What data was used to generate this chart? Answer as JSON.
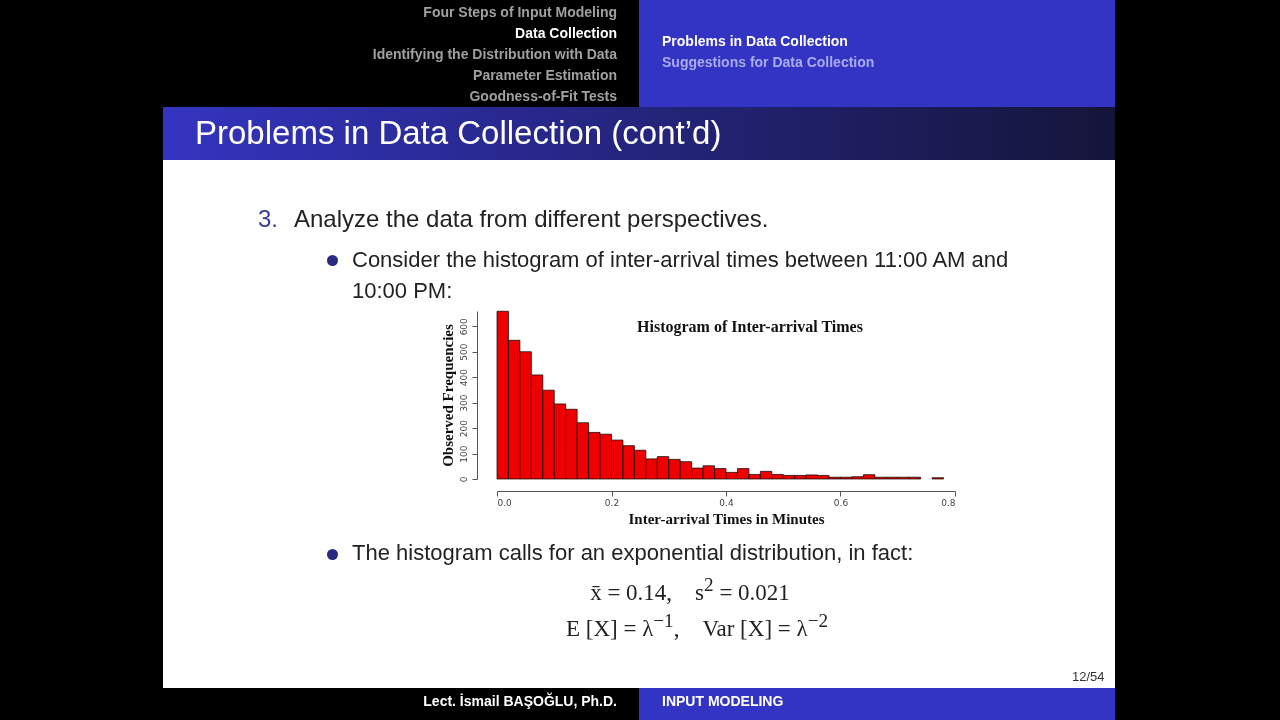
{
  "chart_data": {
    "type": "histogram",
    "title": "Histogram of Inter-arrival Times",
    "xlabel": "Inter-arrival Times in Minutes",
    "ylabel": "Observed Frequencies",
    "bins": [
      0,
      0.02,
      0.04,
      0.06,
      0.08,
      0.1,
      0.12,
      0.14,
      0.16,
      0.18,
      0.2,
      0.22,
      0.24,
      0.26,
      0.28,
      0.3,
      0.32,
      0.34,
      0.36,
      0.38,
      0.4,
      0.42,
      0.44,
      0.46,
      0.48,
      0.5,
      0.52,
      0.54,
      0.56,
      0.58,
      0.6,
      0.62,
      0.64,
      0.66,
      0.68,
      0.7,
      0.72,
      0.74,
      0.76,
      0.78
    ],
    "values": [
      659,
      545,
      500,
      409,
      349,
      295,
      274,
      221,
      183,
      176,
      153,
      131,
      113,
      79,
      88,
      77,
      68,
      43,
      52,
      41,
      26,
      41,
      18,
      30,
      18,
      14,
      14,
      16,
      14,
      7,
      7,
      9,
      17,
      7,
      7,
      7,
      7,
      0,
      5
    ],
    "color": "#ee0000",
    "xlim": [
      0,
      0.8
    ],
    "ylim": [
      0,
      660
    ],
    "xticks": [
      {
        "value": 0,
        "label": "0.0"
      },
      0.2,
      0.4,
      0.6,
      0.8
    ],
    "yticks": [
      0,
      100,
      200,
      300,
      400,
      500,
      600
    ],
    "annotations": [
      "Four Steps of Input Modeling",
      "Data Collection",
      "Identifying the Distribution with Data",
      "Parameter Estimation",
      "Goodness-of-Fit Tests",
      "Problems in Data Collection",
      "Suggestions for Data Collection",
      "Problems in Data Collection (cont’d)",
      "3.",
      "Analyze the data from different perspectives.",
      "Consider the histogram of inter-arrival times between 11:00 AM and 10:00 PM:",
      "The histogram calls for an exponential distribution, in fact:",
      "x̄ = 0.14,    s$^{2}$ = 0.021",
      "E [X] = λ$^{−1}$,    Var [X] = λ$^{−2}$",
      "Lect. İsmail BAŞOĞLU, Ph.D.",
      "INPUT MODELING",
      "12/54"
    ]
  }
}
